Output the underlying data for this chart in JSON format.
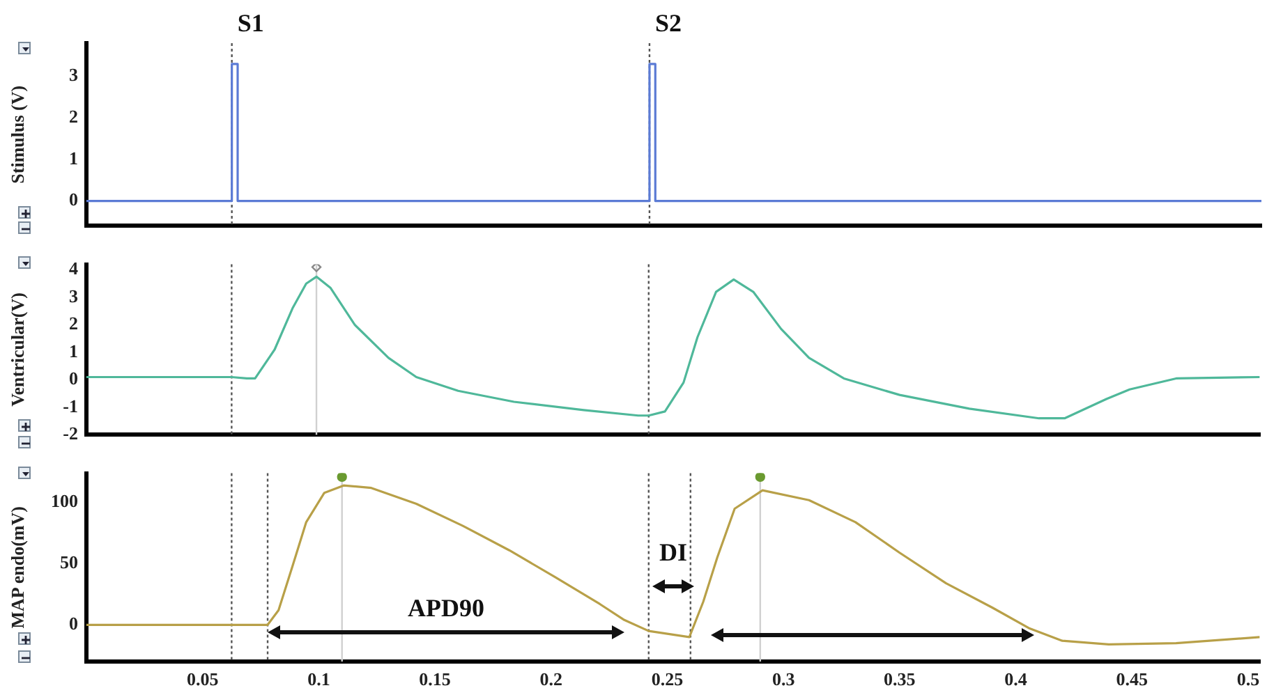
{
  "chart_data": [
    {
      "type": "line",
      "ylabel": "Stimulus (V)",
      "xlim": [
        0,
        0.505
      ],
      "ylim": [
        -0.6,
        3.8
      ],
      "yticks": [
        0,
        1,
        2,
        3
      ],
      "tick_labels": "y",
      "grid": false,
      "legend": false,
      "marker": "none",
      "line_style": "solid",
      "series": [
        {
          "color": "#5b7bd5",
          "x": [
            0,
            0.0625,
            0.0625,
            0.065,
            0.065,
            0.242,
            0.242,
            0.2445,
            0.2445,
            0.505
          ],
          "values": [
            0,
            0,
            3.3,
            3.3,
            0,
            0,
            3.3,
            3.3,
            0,
            0
          ]
        }
      ],
      "ref_lines": [
        {
          "axis": "x",
          "value": 0.0625,
          "label": "S1",
          "color": "#555555",
          "line_style": "dotted"
        },
        {
          "axis": "x",
          "value": 0.242,
          "label": "S2",
          "color": "#555555",
          "line_style": "dotted"
        }
      ]
    },
    {
      "type": "line",
      "ylabel": "Ventricular(V)",
      "xlim": [
        0,
        0.505
      ],
      "ylim": [
        -2,
        4.2
      ],
      "yticks": [
        -2,
        -1,
        0,
        1,
        2,
        3,
        4
      ],
      "tick_labels": "y",
      "grid": false,
      "legend": false,
      "marker": "none",
      "line_style": "solid",
      "series": [
        {
          "color": "#4fb89a",
          "x": [
            0,
            0.0625,
            0.069,
            0.0726,
            0.081,
            0.0887,
            0.0946,
            0.099,
            0.105,
            0.1155,
            0.13,
            0.142,
            0.16,
            0.184,
            0.214,
            0.2375,
            0.242,
            0.249,
            0.257,
            0.263,
            0.271,
            0.2786,
            0.287,
            0.299,
            0.311,
            0.326,
            0.35,
            0.38,
            0.41,
            0.421,
            0.439,
            0.449,
            0.469,
            0.505
          ],
          "values": [
            0.1,
            0.1,
            0.05,
            0.05,
            1.1,
            2.6,
            3.5,
            3.75,
            3.35,
            2.0,
            0.8,
            0.1,
            -0.4,
            -0.8,
            -1.1,
            -1.3,
            -1.3,
            -1.15,
            -0.1,
            1.55,
            3.2,
            3.65,
            3.2,
            1.85,
            0.8,
            0.05,
            -0.55,
            -1.05,
            -1.4,
            -1.4,
            -0.7,
            -0.35,
            0.05,
            0.1
          ]
        },
        {
          "type": "scatter",
          "marker": "diamond",
          "color": "#888888",
          "x": [
            0.099
          ],
          "values": [
            4.1
          ]
        }
      ],
      "ref_lines": [
        {
          "axis": "x",
          "value": 0.0625,
          "color": "#555555",
          "line_style": "dotted"
        },
        {
          "axis": "x",
          "value": 0.242,
          "color": "#555555",
          "line_style": "dotted"
        },
        {
          "axis": "x",
          "value": 0.099,
          "color": "#d0d0d0",
          "line_style": "solid"
        }
      ]
    },
    {
      "type": "line",
      "ylabel": "MAP endo(mV)",
      "xlim": [
        0,
        0.505
      ],
      "ylim": [
        -30,
        124
      ],
      "yticks": [
        0,
        50,
        100
      ],
      "xticks": [
        0.05,
        0.1,
        0.15,
        0.2,
        0.25,
        0.3,
        0.35,
        0.4,
        0.45,
        0.5
      ],
      "grid": false,
      "legend": false,
      "marker": "none",
      "line_style": "solid",
      "series": [
        {
          "color": "#b8a048",
          "x": [
            0,
            0.078,
            0.0827,
            0.0887,
            0.0946,
            0.1024,
            0.1107,
            0.1226,
            0.142,
            0.162,
            0.182,
            0.2018,
            0.221,
            0.2315,
            0.242,
            0.2595,
            0.2655,
            0.2715,
            0.279,
            0.291,
            0.311,
            0.331,
            0.35,
            0.37,
            0.39,
            0.406,
            0.42,
            0.44,
            0.469,
            0.505
          ],
          "values": [
            0,
            0,
            12,
            48,
            84,
            108,
            114,
            112,
            99,
            81,
            61,
            39,
            17,
            4,
            -5,
            -10,
            19,
            55,
            95,
            110,
            102,
            84,
            59,
            34,
            14,
            -3,
            -13,
            -16,
            -15,
            -10
          ]
        },
        {
          "type": "scatter",
          "marker": "circle",
          "color": "#6a9a30",
          "x": [
            0.11,
            0.29
          ],
          "values": [
            121,
            121
          ]
        }
      ],
      "ref_lines": [
        {
          "axis": "x",
          "value": 0.0625,
          "color": "#555555",
          "line_style": "dotted"
        },
        {
          "axis": "x",
          "value": 0.078,
          "color": "#555555",
          "line_style": "dotted"
        },
        {
          "axis": "x",
          "value": 0.242,
          "color": "#555555",
          "line_style": "dotted"
        },
        {
          "axis": "x",
          "value": 0.26,
          "color": "#555555",
          "line_style": "dotted"
        },
        {
          "axis": "x",
          "value": 0.11,
          "color": "#d0d0d0",
          "line_style": "solid"
        },
        {
          "axis": "x",
          "value": 0.29,
          "color": "#d0d0d0",
          "line_style": "solid"
        }
      ],
      "annotations": [
        "APD90",
        "DI"
      ]
    }
  ]
}
